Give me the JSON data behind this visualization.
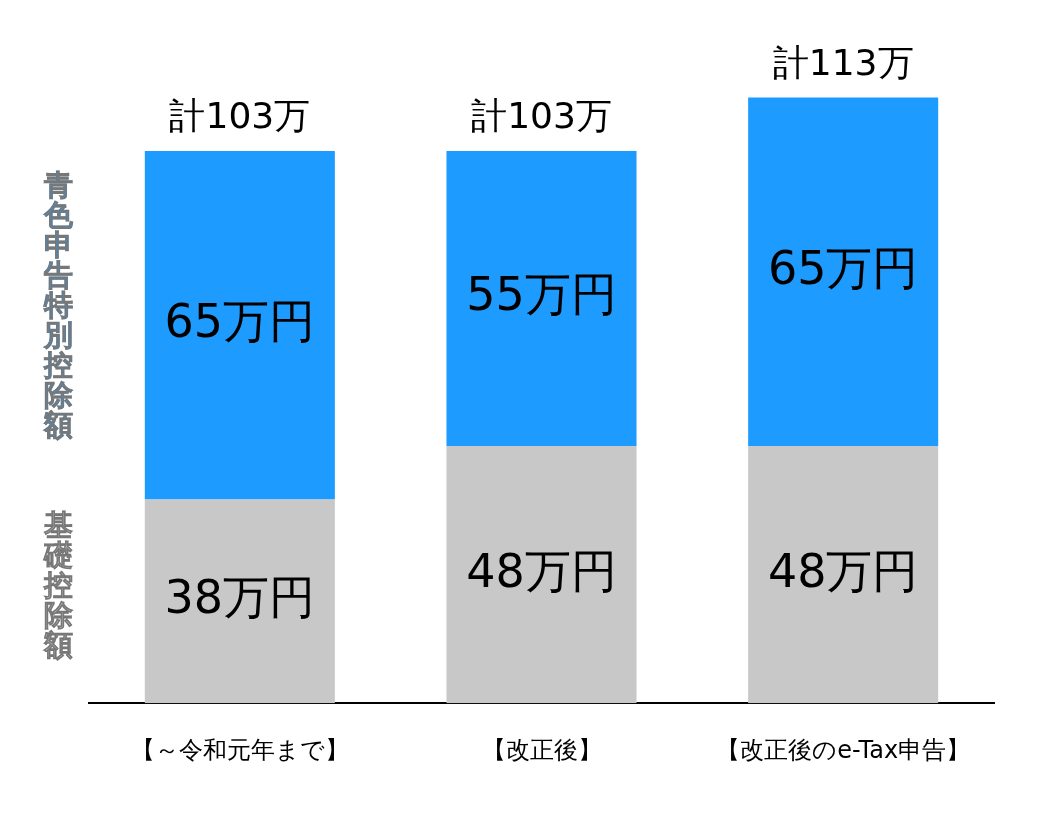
{
  "chart_data": {
    "type": "bar",
    "stacked": true,
    "categories": [
      "【～令和元年まで】",
      "【改正後】",
      "【改正後のe-Tax申告】"
    ],
    "series": [
      {
        "name": "基礎控除額",
        "color": "#c8c8c8",
        "values": [
          38,
          48,
          48
        ],
        "value_labels": [
          "38万円",
          "48万円",
          "48万円"
        ]
      },
      {
        "name": "青色申告特別控除額",
        "color": "#1e9bff",
        "values": [
          65,
          55,
          65
        ],
        "value_labels": [
          "65万円",
          "55万円",
          "65万円"
        ]
      }
    ],
    "totals": [
      "計103万",
      "計103万",
      "計113万"
    ],
    "grid": false
  }
}
